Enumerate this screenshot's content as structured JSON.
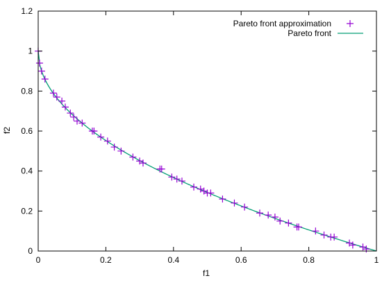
{
  "chart_data": {
    "type": "scatter",
    "xlabel": "f1",
    "ylabel": "f2",
    "xlim": [
      0,
      1
    ],
    "ylim": [
      0,
      1.2
    ],
    "x_ticks": [
      "0",
      "0.2",
      "0.4",
      "0.6",
      "0.8",
      "1"
    ],
    "y_ticks": [
      "0",
      "0.2",
      "0.4",
      "0.6",
      "0.8",
      "1",
      "1.2"
    ],
    "grid": false,
    "legend_position": "top-right",
    "series": [
      {
        "name": "Pareto front approximation",
        "kind": "points",
        "color": "#9400d3",
        "x": [
          0.0,
          0.004,
          0.01,
          0.02,
          0.045,
          0.055,
          0.07,
          0.08,
          0.095,
          0.105,
          0.115,
          0.13,
          0.16,
          0.165,
          0.185,
          0.205,
          0.225,
          0.245,
          0.28,
          0.3,
          0.31,
          0.36,
          0.365,
          0.395,
          0.41,
          0.425,
          0.46,
          0.48,
          0.49,
          0.5,
          0.51,
          0.545,
          0.58,
          0.61,
          0.655,
          0.68,
          0.7,
          0.715,
          0.74,
          0.765,
          0.77,
          0.82,
          0.845,
          0.865,
          0.875,
          0.92,
          0.93,
          0.96,
          0.97
        ],
        "y": [
          1.0,
          0.94,
          0.9,
          0.86,
          0.79,
          0.77,
          0.75,
          0.72,
          0.69,
          0.67,
          0.65,
          0.64,
          0.6,
          0.6,
          0.57,
          0.55,
          0.52,
          0.5,
          0.47,
          0.45,
          0.44,
          0.41,
          0.41,
          0.37,
          0.36,
          0.35,
          0.32,
          0.31,
          0.3,
          0.29,
          0.29,
          0.26,
          0.24,
          0.22,
          0.19,
          0.18,
          0.17,
          0.15,
          0.14,
          0.12,
          0.12,
          0.1,
          0.08,
          0.07,
          0.07,
          0.04,
          0.03,
          0.02,
          0.01
        ]
      },
      {
        "name": "Pareto front",
        "kind": "line",
        "color": "#009e73",
        "function": "f2 = 1 - sqrt(f1)"
      }
    ]
  }
}
